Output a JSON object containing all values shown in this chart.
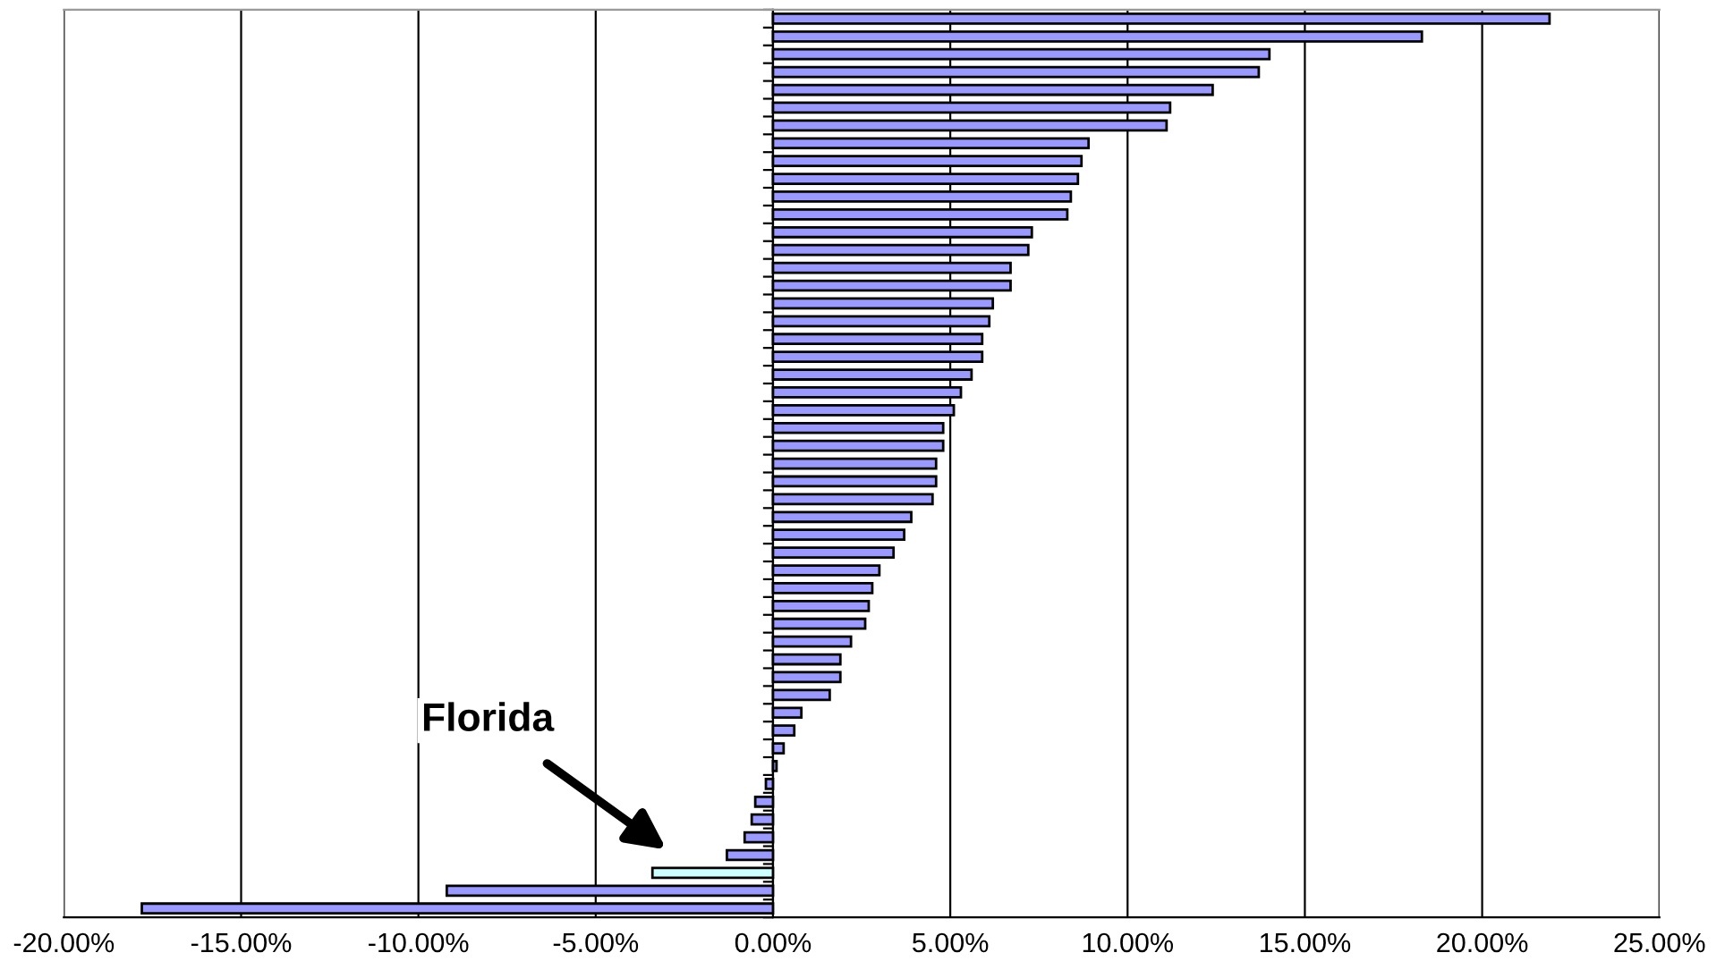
{
  "chart_data": {
    "type": "bar",
    "orientation": "horizontal",
    "categories": [
      null,
      null,
      null,
      null,
      null,
      null,
      null,
      null,
      null,
      null,
      null,
      null,
      null,
      null,
      null,
      null,
      null,
      null,
      null,
      null,
      null,
      null,
      null,
      null,
      null,
      null,
      null,
      null,
      null,
      null,
      null,
      null,
      null,
      null,
      null,
      null,
      null,
      null,
      null,
      null,
      null,
      null,
      null,
      null,
      null,
      null,
      null,
      null,
      null,
      null,
      null
    ],
    "values": [
      21.9,
      18.3,
      14.0,
      13.7,
      12.4,
      11.2,
      11.1,
      8.9,
      8.7,
      8.6,
      8.4,
      8.3,
      7.3,
      7.2,
      6.7,
      6.7,
      6.2,
      6.1,
      5.9,
      5.9,
      5.6,
      5.3,
      5.1,
      4.8,
      4.8,
      4.6,
      4.6,
      4.5,
      3.9,
      3.7,
      3.4,
      3.0,
      2.8,
      2.7,
      2.6,
      2.2,
      1.9,
      1.9,
      1.6,
      0.8,
      0.6,
      0.3,
      0.1,
      -0.2,
      -0.5,
      -0.6,
      -0.8,
      -1.3,
      -3.4,
      -9.2,
      -17.8
    ],
    "colors": [
      "#9999ff",
      "#9999ff",
      "#9999ff",
      "#9999ff",
      "#9999ff",
      "#9999ff",
      "#9999ff",
      "#9999ff",
      "#9999ff",
      "#9999ff",
      "#9999ff",
      "#9999ff",
      "#9999ff",
      "#9999ff",
      "#9999ff",
      "#9999ff",
      "#9999ff",
      "#9999ff",
      "#9999ff",
      "#9999ff",
      "#9999ff",
      "#9999ff",
      "#9999ff",
      "#9999ff",
      "#9999ff",
      "#9999ff",
      "#9999ff",
      "#9999ff",
      "#9999ff",
      "#9999ff",
      "#9999ff",
      "#9999ff",
      "#9999ff",
      "#9999ff",
      "#9999ff",
      "#9999ff",
      "#9999ff",
      "#9999ff",
      "#9999ff",
      "#9999ff",
      "#9999ff",
      "#9999ff",
      "#9999ff",
      "#9999ff",
      "#9999ff",
      "#9999ff",
      "#9999ff",
      "#9999ff",
      "#ccffff",
      "#9999ff",
      "#9999ff"
    ],
    "xlim": [
      -20,
      25
    ],
    "xticks": [
      {
        "value": -20,
        "label": "-20.00%"
      },
      {
        "value": -15,
        "label": "-15.00%"
      },
      {
        "value": -10,
        "label": "-10.00%"
      },
      {
        "value": -5,
        "label": "-5.00%"
      },
      {
        "value": 0,
        "label": "0.00%"
      },
      {
        "value": 5,
        "label": "5.00%"
      },
      {
        "value": 10,
        "label": "10.00%"
      },
      {
        "value": 15,
        "label": "15.00%"
      },
      {
        "value": 20,
        "label": "20.00%"
      },
      {
        "value": 25,
        "label": "25.00%"
      }
    ],
    "grid": "x",
    "legend": false,
    "annotations": [
      "Florida"
    ]
  }
}
